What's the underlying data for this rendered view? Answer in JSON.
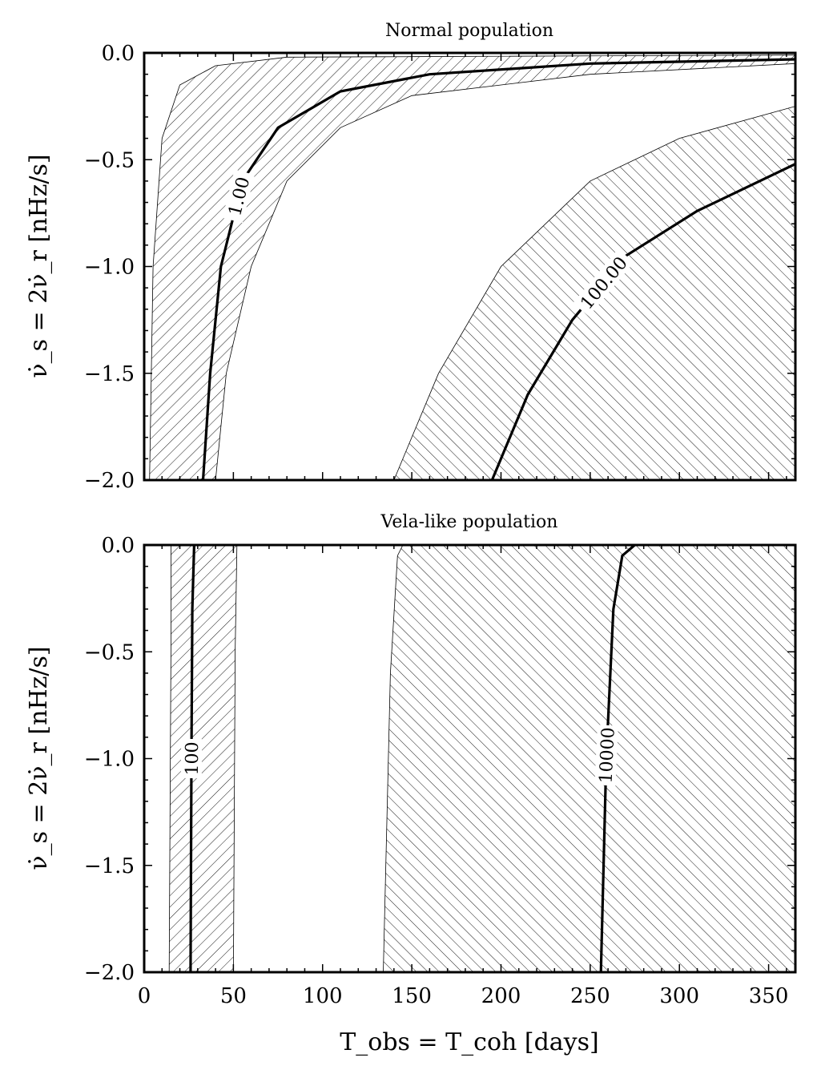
{
  "chart_data": [
    {
      "type": "area",
      "title": "Normal population",
      "xlabel": "T_obs = T_coh [days]",
      "ylabel": "ν̇_s = 2ν̇_r [nHz/s]",
      "xlim": [
        0,
        365
      ],
      "ylim": [
        -2.0,
        0.0
      ],
      "xticks": [
        "0",
        "50",
        "100",
        "150",
        "200",
        "250",
        "300",
        "350"
      ],
      "yticks": [
        "0.0",
        "−0.5",
        "−1.0",
        "−1.5",
        "−2.0"
      ],
      "regions": [
        {
          "hatch": "forward-diagonal",
          "left_boundary": [
            [
              3,
              -2.0
            ],
            [
              5,
              -1.0
            ],
            [
              10,
              -0.4
            ],
            [
              20,
              -0.15
            ],
            [
              40,
              -0.06
            ],
            [
              80,
              -0.02
            ],
            [
              365,
              -0.01
            ]
          ],
          "right_boundary": [
            [
              40,
              -2.0
            ],
            [
              46,
              -1.5
            ],
            [
              60,
              -1.0
            ],
            [
              80,
              -0.6
            ],
            [
              110,
              -0.35
            ],
            [
              150,
              -0.2
            ],
            [
              250,
              -0.1
            ],
            [
              365,
              -0.05
            ]
          ]
        },
        {
          "hatch": "back-diagonal",
          "left_boundary": [
            [
              140,
              -2.0
            ],
            [
              165,
              -1.5
            ],
            [
              200,
              -1.0
            ],
            [
              250,
              -0.6
            ],
            [
              300,
              -0.4
            ],
            [
              365,
              -0.25
            ]
          ]
        }
      ],
      "contours": [
        {
          "label": "1.00",
          "points": [
            [
              33,
              -2.0
            ],
            [
              37,
              -1.5
            ],
            [
              43,
              -1.0
            ],
            [
              55,
              -0.6
            ],
            [
              75,
              -0.35
            ],
            [
              110,
              -0.18
            ],
            [
              160,
              -0.1
            ],
            [
              250,
              -0.05
            ],
            [
              365,
              -0.03
            ]
          ]
        },
        {
          "label": "100.00",
          "points": [
            [
              195,
              -2.0
            ],
            [
              215,
              -1.6
            ],
            [
              240,
              -1.25
            ],
            [
              270,
              -0.95
            ],
            [
              310,
              -0.74
            ],
            [
              365,
              -0.52
            ]
          ]
        }
      ]
    },
    {
      "type": "area",
      "title": "Vela-like population",
      "xlabel": "T_obs = T_coh [days]",
      "ylabel": "ν̇_s = 2ν̇_r [nHz/s]",
      "xlim": [
        0,
        365
      ],
      "ylim": [
        -2.0,
        0.0
      ],
      "xticks": [
        "0",
        "50",
        "100",
        "150",
        "200",
        "250",
        "300",
        "350"
      ],
      "yticks": [
        "0.0",
        "−0.5",
        "−1.0",
        "−1.5",
        "−2.0"
      ],
      "regions": [
        {
          "hatch": "forward-diagonal",
          "left_boundary": [
            [
              14,
              -2.0
            ],
            [
              15,
              -0.5
            ],
            [
              15,
              0.0
            ]
          ],
          "right_boundary": [
            [
              50,
              -2.0
            ],
            [
              51,
              -0.5
            ],
            [
              52,
              0.0
            ]
          ]
        },
        {
          "hatch": "back-diagonal",
          "left_boundary": [
            [
              134,
              -2.0
            ],
            [
              138,
              -0.6
            ],
            [
              142,
              -0.05
            ],
            [
              145,
              0.0
            ]
          ]
        }
      ],
      "contours": [
        {
          "label": "100",
          "points": [
            [
              26,
              -2.0
            ],
            [
              26.5,
              -1.0
            ],
            [
              27,
              -0.3
            ],
            [
              28,
              0.0
            ]
          ]
        },
        {
          "label": "10000",
          "points": [
            [
              256,
              -2.0
            ],
            [
              259,
              -1.0
            ],
            [
              263,
              -0.3
            ],
            [
              268,
              -0.05
            ],
            [
              275,
              0.0
            ]
          ]
        }
      ]
    }
  ]
}
